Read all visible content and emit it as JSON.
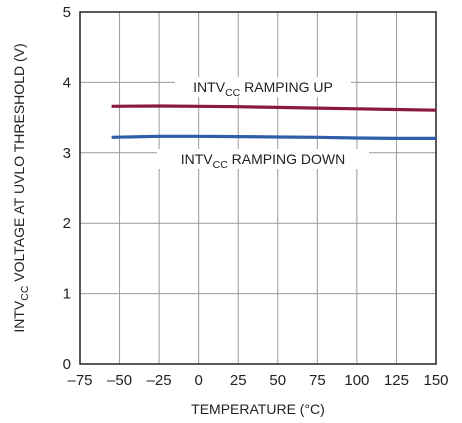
{
  "chart_data": {
    "type": "line",
    "xlabel": "TEMPERATURE (°C)",
    "ylabel": {
      "pre": "INTV",
      "sub": "CC",
      "post": " VOLTAGE AT UVLO THRESHOLD (V)"
    },
    "xlim": [
      -75,
      150
    ],
    "ylim": [
      0,
      5
    ],
    "xticks": [
      -75,
      -50,
      -25,
      0,
      25,
      50,
      75,
      100,
      125,
      150
    ],
    "yticks": [
      0,
      1,
      2,
      3,
      4,
      5
    ],
    "xtick_labels": [
      "–75",
      "–50",
      "–25",
      "0",
      "25",
      "50",
      "75",
      "100",
      "125",
      "150"
    ],
    "ytick_labels": [
      "0",
      "1",
      "2",
      "3",
      "4",
      "5"
    ],
    "grid": true,
    "series": [
      {
        "label": {
          "pre": "INTV",
          "sub": "CC",
          "post": " RAMPING UP"
        },
        "color": "#8b1a3a",
        "points": [
          [
            -55,
            3.66
          ],
          [
            -25,
            3.665
          ],
          [
            0,
            3.66
          ],
          [
            25,
            3.655
          ],
          [
            50,
            3.645
          ],
          [
            75,
            3.635
          ],
          [
            100,
            3.625
          ],
          [
            125,
            3.615
          ],
          [
            150,
            3.605
          ]
        ]
      },
      {
        "label": {
          "pre": "INTV",
          "sub": "CC",
          "post": " RAMPING DOWN"
        },
        "color": "#2f5ea8",
        "points": [
          [
            -55,
            3.22
          ],
          [
            -25,
            3.235
          ],
          [
            0,
            3.235
          ],
          [
            25,
            3.23
          ],
          [
            50,
            3.225
          ],
          [
            75,
            3.22
          ],
          [
            100,
            3.21
          ],
          [
            125,
            3.205
          ],
          [
            150,
            3.205
          ]
        ]
      }
    ]
  }
}
